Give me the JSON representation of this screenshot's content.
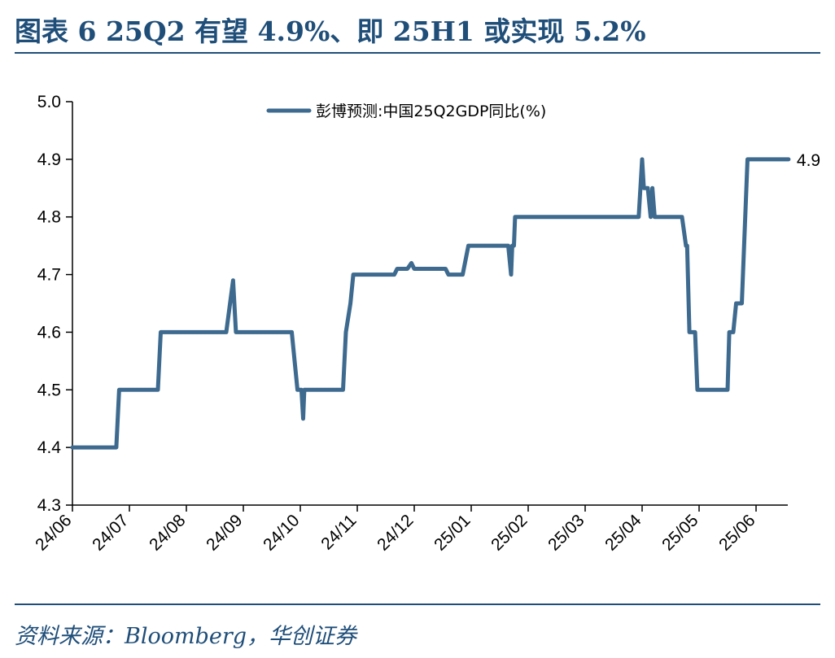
{
  "title": "图表 6   25Q2 有望 4.9%、即 25H1 或实现 5.2%",
  "source": "资料来源：Bloomberg，华创证券",
  "colors": {
    "accent": "#1f4e79",
    "line": "#3d6a8e"
  },
  "chart_data": {
    "type": "line",
    "title": "",
    "xlabel": "",
    "ylabel": "",
    "ylim": [
      4.3,
      5.0
    ],
    "yticks": [
      5.0,
      4.9,
      4.8,
      4.7,
      4.6,
      4.5,
      4.4,
      4.3
    ],
    "ytick_labels": [
      "5.0",
      "4.9",
      "4.8",
      "4.7",
      "4.6",
      "4.5",
      "4.4",
      "4.3"
    ],
    "xlim": [
      0,
      12.57
    ],
    "xticks": [
      0,
      1,
      2,
      3,
      4,
      5,
      6,
      7,
      8,
      9,
      10,
      11,
      12
    ],
    "xtick_labels": [
      "24/06",
      "24/07",
      "24/08",
      "24/09",
      "24/10",
      "24/11",
      "24/12",
      "25/01",
      "25/02",
      "25/03",
      "25/04",
      "25/05",
      "25/06"
    ],
    "legend": {
      "position": "top-center"
    },
    "series": [
      {
        "name": "彭博预测:中国25Q2GDP同比(%)",
        "end_label": "4.9",
        "x": [
          0,
          0.7,
          0.75,
          0.77,
          0.82,
          1.5,
          1.55,
          1.6,
          2.7,
          2.82,
          2.87,
          2.95,
          3.85,
          3.95,
          4.02,
          4.05,
          4.07,
          4.1,
          4.75,
          4.8,
          4.88,
          4.93,
          5.65,
          5.7,
          5.88,
          5.95,
          6.0,
          6.55,
          6.6,
          6.85,
          6.95,
          7.65,
          7.7,
          7.72,
          7.75,
          7.77,
          7.8,
          8.6,
          8.9,
          9.94,
          10.0,
          10.03,
          10.06,
          10.1,
          10.15,
          10.18,
          10.22,
          10.25,
          10.3,
          10.7,
          10.77,
          10.79,
          10.83,
          10.86,
          10.93,
          10.97,
          11.05,
          11.5,
          11.53,
          11.6,
          11.65,
          11.68,
          11.75,
          11.85,
          11.9,
          12.3,
          12.57
        ],
        "y": [
          4.4,
          4.4,
          4.4,
          4.4,
          4.5,
          4.5,
          4.6,
          4.6,
          4.6,
          4.69,
          4.6,
          4.6,
          4.6,
          4.5,
          4.5,
          4.45,
          4.5,
          4.5,
          4.5,
          4.6,
          4.65,
          4.7,
          4.7,
          4.71,
          4.71,
          4.72,
          4.71,
          4.71,
          4.7,
          4.7,
          4.75,
          4.75,
          4.7,
          4.75,
          4.75,
          4.8,
          4.8,
          4.8,
          4.8,
          4.8,
          4.9,
          4.85,
          4.85,
          4.85,
          4.8,
          4.85,
          4.8,
          4.8,
          4.8,
          4.8,
          4.75,
          4.75,
          4.6,
          4.6,
          4.6,
          4.5,
          4.5,
          4.5,
          4.6,
          4.6,
          4.65,
          4.65,
          4.65,
          4.9,
          4.9,
          4.9,
          4.9
        ]
      }
    ]
  }
}
